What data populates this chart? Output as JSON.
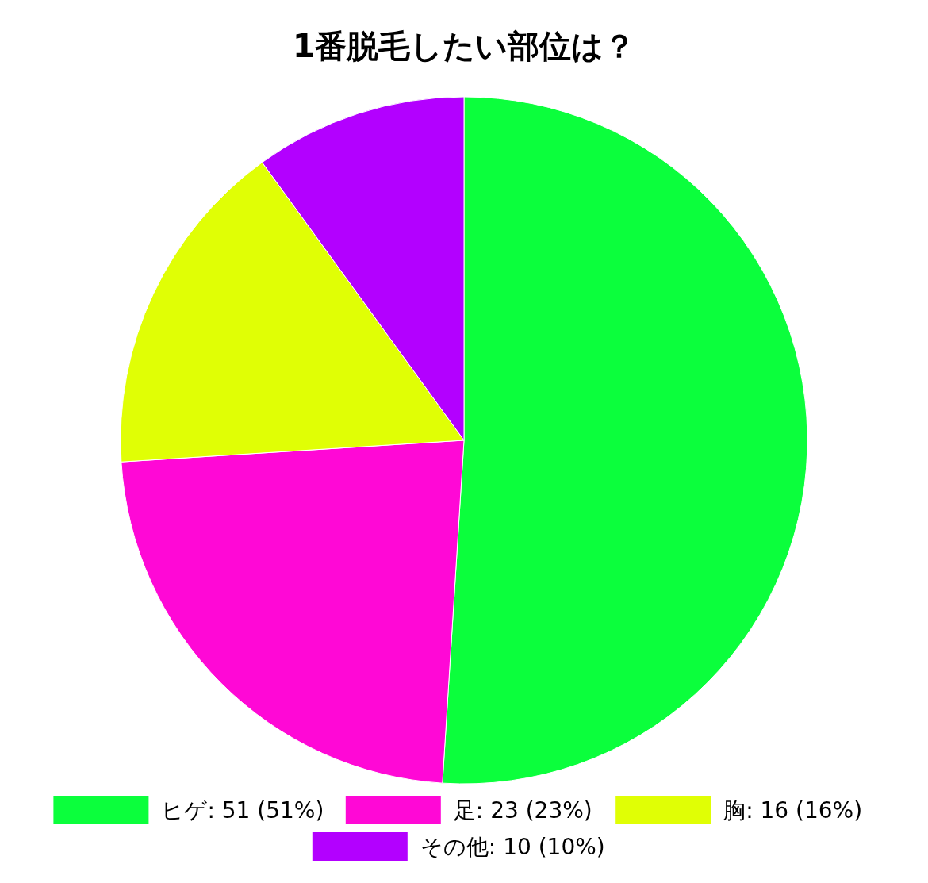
{
  "chart_data": {
    "type": "pie",
    "title": "1番脱毛したい部位は？",
    "categories": [
      "ヒゲ",
      "足",
      "胸",
      "その他"
    ],
    "values": [
      51,
      23,
      16,
      10
    ],
    "value_labels": [
      "51 (51%)",
      "23 (23%)",
      "16 (16%)",
      "10 (10%)"
    ],
    "colors": [
      "#0bff3c",
      "#ff08d6",
      "#e0ff05",
      "#b300ff"
    ],
    "legend": "bottom"
  }
}
